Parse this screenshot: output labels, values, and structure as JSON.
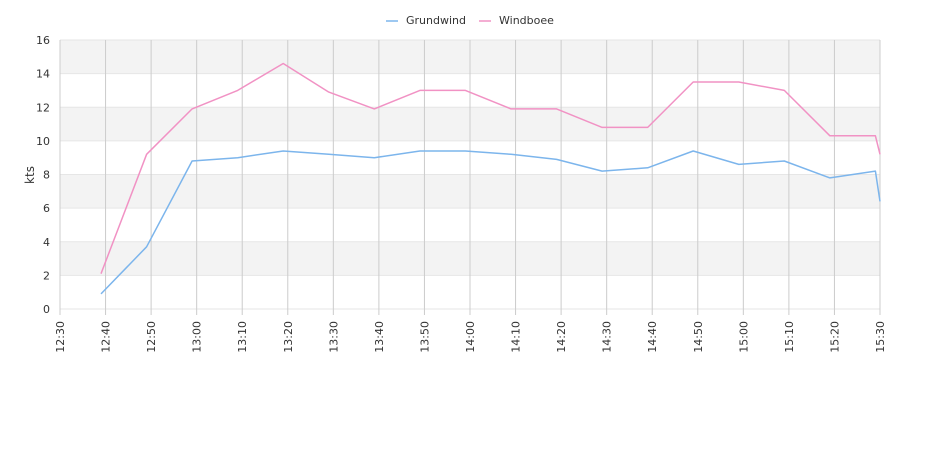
{
  "chart_data": {
    "type": "line",
    "title": "",
    "xlabel": "",
    "ylabel": "kts",
    "ylim": [
      0,
      16
    ],
    "y_ticks": [
      0,
      2,
      4,
      6,
      8,
      10,
      12,
      14,
      16
    ],
    "y_tick_labels": [
      "0",
      "2",
      "4",
      "6",
      "8",
      "10",
      "12",
      "14",
      "16"
    ],
    "x_range": [
      "12:30",
      "15:30"
    ],
    "x_ticks": [
      "12:30",
      "12:40",
      "12:50",
      "13:00",
      "13:10",
      "13:20",
      "13:30",
      "13:40",
      "13:50",
      "14:00",
      "14:10",
      "14:20",
      "14:30",
      "14:40",
      "14:50",
      "15:00",
      "15:10",
      "15:20",
      "15:30"
    ],
    "grid": true,
    "alternating_bands": true,
    "legend_position": "top-center",
    "colors": {
      "band": "#f3f3f3",
      "grid_vertical": "#cccccc",
      "grid_horizontal": "#e6e6e6"
    },
    "series": [
      {
        "name": "Grundwind",
        "color": "#7cb5ec",
        "points": [
          [
            "12:39",
            0.9
          ],
          [
            "12:49",
            3.7
          ],
          [
            "12:59",
            8.8
          ],
          [
            "13:09",
            9.0
          ],
          [
            "13:19",
            9.4
          ],
          [
            "13:29",
            9.2
          ],
          [
            "13:39",
            9.0
          ],
          [
            "13:49",
            9.4
          ],
          [
            "13:59",
            9.4
          ],
          [
            "14:09",
            9.2
          ],
          [
            "14:19",
            8.9
          ],
          [
            "14:29",
            8.2
          ],
          [
            "14:39",
            8.4
          ],
          [
            "14:49",
            9.4
          ],
          [
            "14:59",
            8.6
          ],
          [
            "15:09",
            8.8
          ],
          [
            "15:19",
            7.8
          ],
          [
            "15:29",
            8.2
          ],
          [
            "15:30",
            6.4
          ]
        ]
      },
      {
        "name": "Windboee",
        "color": "#f192c4",
        "points": [
          [
            "12:39",
            2.1
          ],
          [
            "12:49",
            9.2
          ],
          [
            "12:59",
            11.9
          ],
          [
            "13:09",
            13.0
          ],
          [
            "13:19",
            14.6
          ],
          [
            "13:29",
            12.9
          ],
          [
            "13:39",
            11.9
          ],
          [
            "13:49",
            13.0
          ],
          [
            "13:59",
            13.0
          ],
          [
            "14:09",
            11.9
          ],
          [
            "14:19",
            11.9
          ],
          [
            "14:29",
            10.8
          ],
          [
            "14:39",
            10.8
          ],
          [
            "14:49",
            13.5
          ],
          [
            "14:59",
            13.5
          ],
          [
            "15:09",
            13.0
          ],
          [
            "15:19",
            10.3
          ],
          [
            "15:29",
            10.3
          ],
          [
            "15:30",
            9.2
          ]
        ]
      }
    ]
  }
}
